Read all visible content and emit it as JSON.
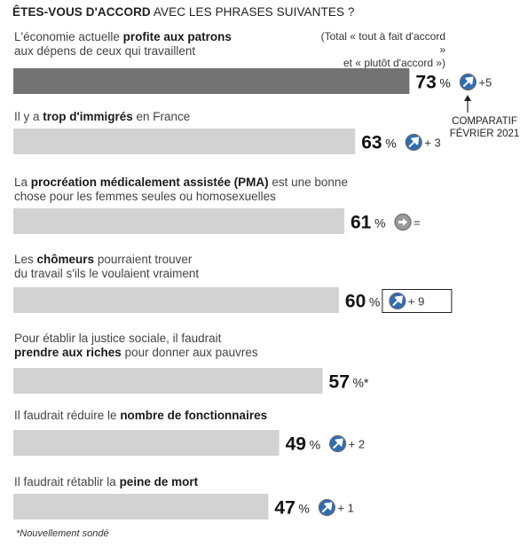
{
  "header": {
    "bold": "ÊTES-VOUS D'ACCORD",
    "rest": "AVEC LES PHRASES SUIVANTES ?"
  },
  "note": {
    "line1": "(Total « tout à fait d'accord »",
    "line2": "et « plutôt d'accord »)"
  },
  "comparison": {
    "line1": "COMPARATIF",
    "line2": "FÉVRIER 2021"
  },
  "footnote": "*Nouvellement sondé",
  "colors": {
    "first_bar": "#737373",
    "bar": "#d2d2d2",
    "icon": "#2f6db5"
  },
  "chart_data": {
    "type": "bar",
    "orientation": "horizontal",
    "value_unit": "%",
    "categories": [
      {
        "text": [
          [
            "L'économie actuelle ",
            false
          ],
          [
            "profite aux patrons",
            true
          ]
        ],
        "text2": [
          [
            "aux dépens de ceux qui travaillent",
            false
          ]
        ]
      },
      {
        "text": [
          [
            "Il y a ",
            false
          ],
          [
            "trop d'immigrés",
            true
          ],
          [
            " en France",
            false
          ]
        ],
        "text2": []
      },
      {
        "text": [
          [
            "La ",
            false
          ],
          [
            "procréation médicalement assistée (PMA)",
            true
          ],
          [
            " est une bonne",
            false
          ]
        ],
        "text2": [
          [
            "chose pour les femmes seules ou homosexuelles",
            false
          ]
        ]
      },
      {
        "text": [
          [
            "Les ",
            false
          ],
          [
            "chômeurs",
            true
          ],
          [
            " pourraient trouver",
            false
          ]
        ],
        "text2": [
          [
            "du travail s'ils le voulaient vraiment",
            false
          ]
        ]
      },
      {
        "text": [
          [
            "Pour établir la justice sociale, il faudrait",
            false
          ]
        ],
        "text2": [
          [
            "prendre aux riches",
            true
          ],
          [
            " pour donner aux pauvres",
            false
          ]
        ]
      },
      {
        "text": [
          [
            "Il faudrait réduire le ",
            false
          ],
          [
            "nombre de fonctionnaires",
            true
          ]
        ],
        "text2": []
      },
      {
        "text": [
          [
            "Il faudrait rétablir la ",
            false
          ],
          [
            "peine de mort",
            true
          ]
        ],
        "text2": []
      }
    ],
    "values": [
      73,
      63,
      61,
      60,
      57,
      49,
      47
    ],
    "value_labels": [
      "73",
      "63",
      "61",
      "60",
      "57",
      "49",
      "47"
    ],
    "changes": [
      "+5",
      "+ 3",
      "=",
      "+ 9",
      "",
      "+ 2",
      "+ 1"
    ],
    "trend": [
      "up",
      "up",
      "flat",
      "up",
      "new",
      "up",
      "up"
    ],
    "asterisk": [
      false,
      false,
      false,
      false,
      true,
      false,
      false
    ],
    "boxed": [
      false,
      false,
      false,
      true,
      false,
      false,
      false
    ]
  }
}
